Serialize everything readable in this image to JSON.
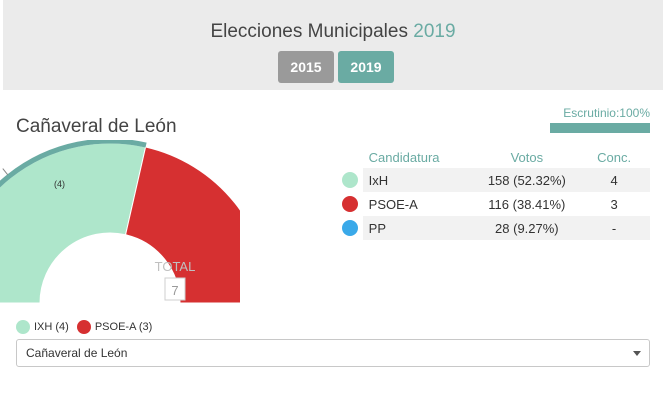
{
  "header": {
    "title": "Elecciones Municipales",
    "title_year": "2019",
    "year_buttons": [
      "2015",
      "2019"
    ],
    "active_year": "2019"
  },
  "place": {
    "name": "Cañaveral de León"
  },
  "scrutiny": {
    "label": "Escrutinio:100%",
    "percent": 100
  },
  "table": {
    "headers": {
      "candidatura": "Candidatura",
      "votos": "Votos",
      "conc": "Conc."
    },
    "rows": [
      {
        "party": "IxH",
        "votes": "158 (52.32%)",
        "seats": "4",
        "color": "#aee6cb"
      },
      {
        "party": "PSOE-A",
        "votes": "116 (38.41%)",
        "seats": "3",
        "color": "#d63031"
      },
      {
        "party": "PP",
        "votes": "28 (9.27%)",
        "seats": "-",
        "color": "#3aa9e9"
      }
    ]
  },
  "chart_data": {
    "type": "pie",
    "subtype": "semi-donut",
    "segments": [
      {
        "label": "IXH",
        "value": 4,
        "color": "#aee6cb"
      },
      {
        "label": "PSOE-A",
        "value": 3,
        "color": "#d63031"
      }
    ],
    "highlight_label": "(4)",
    "center_label": "TOTAL",
    "center_value": "7"
  },
  "legend": {
    "items": [
      {
        "label": "IXH (4)",
        "color": "#aee6cb"
      },
      {
        "label": "PSOE-A (3)",
        "color": "#d63031"
      }
    ]
  },
  "select": {
    "value": "Cañaveral de León"
  },
  "colors": {
    "accent": "#6aaba3",
    "inactive": "#9a9a9a"
  }
}
